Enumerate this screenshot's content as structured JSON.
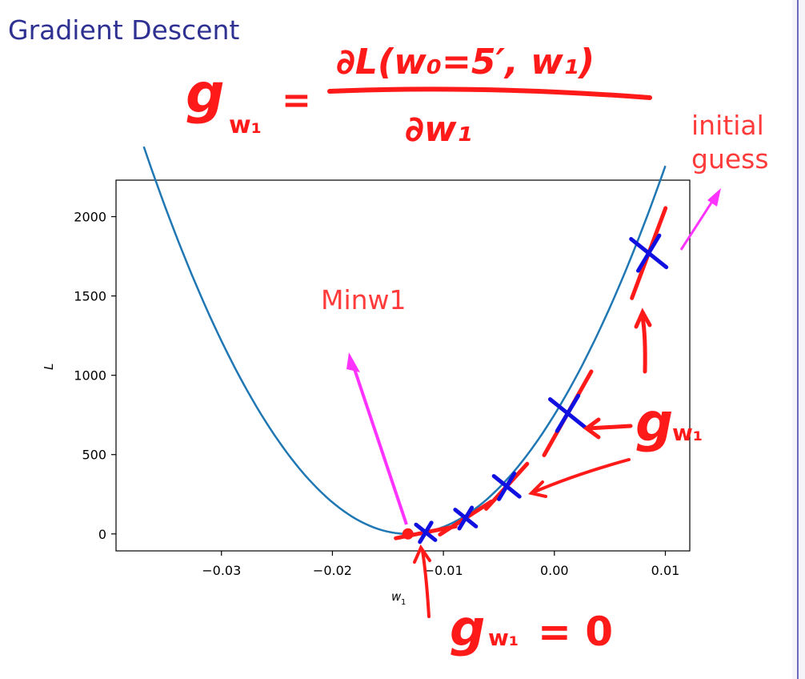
{
  "slide": {
    "title": "Gradient Descent",
    "formula_top": "∂L(w₀=5′, w₁)",
    "formula_lhs": "g",
    "formula_sub": "w₁",
    "formula_equals": "=",
    "formula_bottom": "∂w₁"
  },
  "annotations": {
    "initial_guess": "initial guess",
    "minw1": "Minw1",
    "gradient_label": "g",
    "gradient_sub": "w₁",
    "zero_label": "g",
    "zero_sub": "w₁",
    "zero_eq": "= 0"
  },
  "colors": {
    "title": "#2e3192",
    "curve": "#1f77b4",
    "ink_red": "#ff1a1a",
    "ink_blue": "#1010e0",
    "ink_magenta": "#ff33ff"
  },
  "chart_data": {
    "type": "line",
    "title": "",
    "xlabel": "w",
    "xlabel_sub": "1",
    "ylabel": "L",
    "xlim": [
      -0.0395,
      0.0122
    ],
    "ylim": [
      -107,
      2230
    ],
    "xticks": [
      -0.03,
      -0.02,
      -0.01,
      0.0,
      0.01
    ],
    "xtick_labels": [
      "−0.03",
      "−0.02",
      "−0.01",
      "0.00",
      "0.01"
    ],
    "yticks": [
      0,
      500,
      1000,
      1500,
      2000
    ],
    "ytick_labels": [
      "0",
      "500",
      "1000",
      "1500",
      "2000"
    ],
    "series": [
      {
        "name": "L(w1)",
        "function": "quadratic",
        "vertex_w1": -0.0132,
        "min_L": 0,
        "curvature": 4310000.0,
        "x_range": [
          -0.037,
          0.01
        ]
      }
    ],
    "steps": [
      {
        "w1": 0.0085,
        "L": 1770
      },
      {
        "w1": 0.0012,
        "L": 760
      },
      {
        "w1": -0.0043,
        "L": 300
      },
      {
        "w1": -0.008,
        "L": 100
      },
      {
        "w1": -0.0116,
        "L": 10
      }
    ],
    "minimum": {
      "w1": -0.0132,
      "L": 0
    }
  }
}
